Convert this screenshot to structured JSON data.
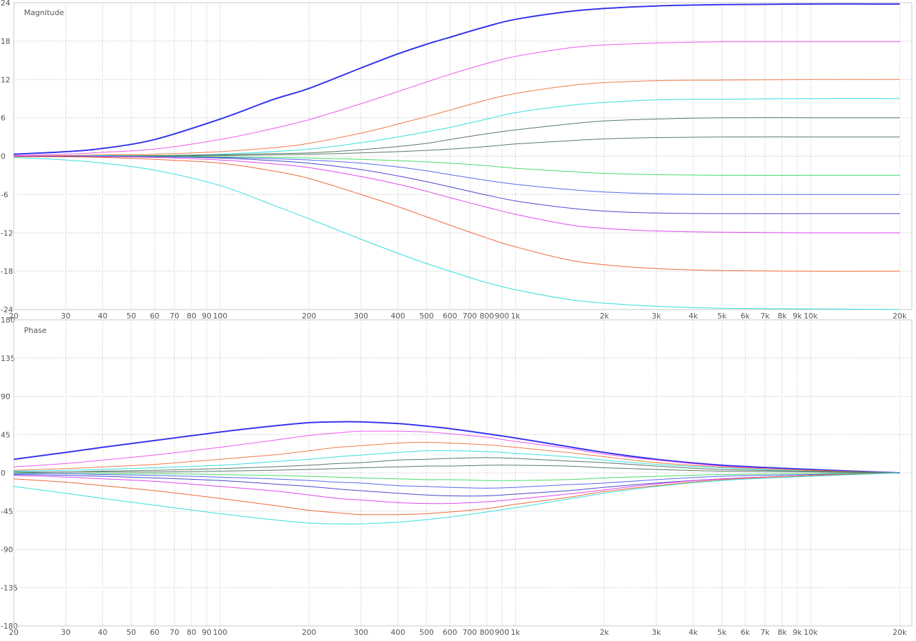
{
  "chart_data": [
    {
      "type": "line",
      "title": "Magnitude",
      "x_scale": "log",
      "xlim": [
        20,
        22000
      ],
      "ylim": [
        -24,
        24
      ],
      "grid": true,
      "x_ticks": [
        {
          "v": 20,
          "label": "20"
        },
        {
          "v": 30,
          "label": "30"
        },
        {
          "v": 40,
          "label": "40"
        },
        {
          "v": 50,
          "label": "50"
        },
        {
          "v": 60,
          "label": "60"
        },
        {
          "v": 70,
          "label": "70"
        },
        {
          "v": 80,
          "label": "80"
        },
        {
          "v": 90,
          "label": "90"
        },
        {
          "v": 100,
          "label": "100"
        },
        {
          "v": 200,
          "label": "200"
        },
        {
          "v": 300,
          "label": "300"
        },
        {
          "v": 400,
          "label": "400"
        },
        {
          "v": 500,
          "label": "500"
        },
        {
          "v": 600,
          "label": "600"
        },
        {
          "v": 700,
          "label": "700"
        },
        {
          "v": 800,
          "label": "800"
        },
        {
          "v": 900,
          "label": "900"
        },
        {
          "v": 1000,
          "label": "1k"
        },
        {
          "v": 2000,
          "label": "2k"
        },
        {
          "v": 3000,
          "label": "3k"
        },
        {
          "v": 4000,
          "label": "4k"
        },
        {
          "v": 5000,
          "label": "5k"
        },
        {
          "v": 6000,
          "label": "6k"
        },
        {
          "v": 7000,
          "label": "7k"
        },
        {
          "v": 8000,
          "label": "8k"
        },
        {
          "v": 9000,
          "label": "9k"
        },
        {
          "v": 10000,
          "label": "10k"
        },
        {
          "v": 20000,
          "label": "20k"
        }
      ],
      "y_ticks": [
        {
          "v": 24,
          "label": "24"
        },
        {
          "v": 18,
          "label": "18"
        },
        {
          "v": 12,
          "label": "12"
        },
        {
          "v": 6,
          "label": "6"
        },
        {
          "v": 0,
          "label": "0"
        },
        {
          "v": -6,
          "label": "-6"
        },
        {
          "v": -12,
          "label": "-12"
        },
        {
          "v": -18,
          "label": "-18"
        },
        {
          "v": -24,
          "label": "-24"
        }
      ],
      "x": [
        20,
        30,
        40,
        60,
        100,
        150,
        200,
        300,
        400,
        500,
        600,
        800,
        1000,
        1500,
        2000,
        3000,
        5000,
        10000,
        20000
      ],
      "series": [
        {
          "color": "#3333ee",
          "values": [
            0.3,
            0.7,
            1.2,
            2.6,
            5.8,
            8.8,
            10.6,
            13.8,
            16.0,
            17.5,
            18.6,
            20.3,
            21.4,
            22.6,
            23.1,
            23.5,
            23.7,
            23.8,
            23.8
          ]
        },
        {
          "color": "#ee55ee",
          "values": [
            0.1,
            0.3,
            0.6,
            1.1,
            2.6,
            4.3,
            5.7,
            8.2,
            10.1,
            11.6,
            12.8,
            14.5,
            15.6,
            16.9,
            17.4,
            17.7,
            17.9,
            17.9,
            17.9
          ]
        },
        {
          "color": "#ee7744",
          "values": [
            0.0,
            0.1,
            0.2,
            0.3,
            0.7,
            1.3,
            2.0,
            3.6,
            5.0,
            6.2,
            7.2,
            8.8,
            9.8,
            11.0,
            11.5,
            11.8,
            11.9,
            12.0,
            12.0
          ]
        },
        {
          "color": "#33dddd",
          "values": [
            0.0,
            0.0,
            0.1,
            0.1,
            0.3,
            0.7,
            1.1,
            2.1,
            3.0,
            3.8,
            4.5,
            5.8,
            6.8,
            7.9,
            8.4,
            8.8,
            8.9,
            9.0,
            9.0
          ]
        },
        {
          "color": "#557766",
          "values": [
            0.0,
            0.0,
            0.0,
            0.1,
            0.2,
            0.4,
            0.5,
            1.0,
            1.5,
            2.0,
            2.6,
            3.5,
            4.1,
            5.0,
            5.5,
            5.8,
            6.0,
            6.0,
            6.0
          ]
        },
        {
          "color": "#557766",
          "values": [
            0.0,
            0.0,
            0.0,
            0.0,
            0.1,
            0.2,
            0.3,
            0.5,
            0.7,
            0.9,
            1.1,
            1.5,
            1.9,
            2.4,
            2.7,
            2.9,
            3.0,
            3.0,
            3.0
          ]
        },
        {
          "color": "#44dd66",
          "values": [
            0.0,
            0.0,
            0.0,
            0.0,
            -0.1,
            -0.2,
            -0.3,
            -0.5,
            -0.7,
            -0.9,
            -1.1,
            -1.5,
            -1.9,
            -2.4,
            -2.7,
            -2.9,
            -3.0,
            -3.0,
            -3.0
          ]
        },
        {
          "color": "#5566ee",
          "values": [
            0.0,
            0.0,
            0.0,
            -0.1,
            -0.2,
            -0.4,
            -0.6,
            -1.1,
            -1.7,
            -2.3,
            -2.9,
            -3.8,
            -4.4,
            -5.2,
            -5.6,
            -5.9,
            -6.0,
            -6.0,
            -6.0
          ]
        },
        {
          "color": "#4444cc",
          "values": [
            0.0,
            0.0,
            -0.1,
            -0.1,
            -0.3,
            -0.7,
            -1.1,
            -2.1,
            -3.1,
            -4.0,
            -4.8,
            -6.1,
            -7.0,
            -8.1,
            -8.6,
            -8.9,
            -9.0,
            -9.0,
            -9.0
          ]
        },
        {
          "color": "#dd44ee",
          "values": [
            0.0,
            -0.1,
            -0.1,
            -0.2,
            -0.6,
            -1.2,
            -1.8,
            -3.2,
            -4.4,
            -5.5,
            -6.5,
            -8.0,
            -9.1,
            -10.7,
            -11.3,
            -11.7,
            -11.9,
            -12.0,
            -12.0
          ]
        },
        {
          "color": "#ee6633",
          "values": [
            -0.1,
            -0.1,
            -0.2,
            -0.5,
            -1.1,
            -2.3,
            -3.5,
            -6.0,
            -7.9,
            -9.5,
            -10.8,
            -12.8,
            -14.2,
            -16.2,
            -17.0,
            -17.6,
            -17.9,
            -18.0,
            -18.0
          ]
        },
        {
          "color": "#33dddd",
          "values": [
            -0.2,
            -0.6,
            -1.1,
            -2.2,
            -4.6,
            -7.6,
            -9.8,
            -13.0,
            -15.2,
            -16.8,
            -18.0,
            -19.8,
            -20.9,
            -22.4,
            -23.0,
            -23.5,
            -23.8,
            -23.9,
            -24.0
          ]
        }
      ]
    },
    {
      "type": "line",
      "title": "Phase",
      "x_scale": "log",
      "xlim": [
        20,
        22000
      ],
      "ylim": [
        -180,
        180
      ],
      "grid": true,
      "x_ticks": [
        {
          "v": 20,
          "label": "20"
        },
        {
          "v": 30,
          "label": "30"
        },
        {
          "v": 40,
          "label": "40"
        },
        {
          "v": 50,
          "label": "50"
        },
        {
          "v": 60,
          "label": "60"
        },
        {
          "v": 70,
          "label": "70"
        },
        {
          "v": 80,
          "label": "80"
        },
        {
          "v": 90,
          "label": "90"
        },
        {
          "v": 100,
          "label": "100"
        },
        {
          "v": 200,
          "label": "200"
        },
        {
          "v": 300,
          "label": "300"
        },
        {
          "v": 400,
          "label": "400"
        },
        {
          "v": 500,
          "label": "500"
        },
        {
          "v": 600,
          "label": "600"
        },
        {
          "v": 700,
          "label": "700"
        },
        {
          "v": 800,
          "label": "800"
        },
        {
          "v": 900,
          "label": "900"
        },
        {
          "v": 1000,
          "label": "1k"
        },
        {
          "v": 2000,
          "label": "2k"
        },
        {
          "v": 3000,
          "label": "3k"
        },
        {
          "v": 4000,
          "label": "4k"
        },
        {
          "v": 5000,
          "label": "5k"
        },
        {
          "v": 6000,
          "label": "6k"
        },
        {
          "v": 7000,
          "label": "7k"
        },
        {
          "v": 8000,
          "label": "8k"
        },
        {
          "v": 9000,
          "label": "9k"
        },
        {
          "v": 10000,
          "label": "10k"
        },
        {
          "v": 20000,
          "label": "20k"
        }
      ],
      "y_ticks": [
        {
          "v": 180,
          "label": "180"
        },
        {
          "v": 135,
          "label": "135"
        },
        {
          "v": 90,
          "label": "90"
        },
        {
          "v": 45,
          "label": "45"
        },
        {
          "v": 0,
          "label": "0"
        },
        {
          "v": -45,
          "label": "-45"
        },
        {
          "v": -90,
          "label": "-90"
        },
        {
          "v": -135,
          "label": "-135"
        },
        {
          "v": -180,
          "label": "-180"
        }
      ],
      "x": [
        20,
        30,
        40,
        60,
        100,
        150,
        200,
        250,
        300,
        400,
        500,
        600,
        800,
        1000,
        1500,
        2000,
        3000,
        5000,
        10000,
        20000
      ],
      "series": [
        {
          "color": "#3333ee",
          "values": [
            16,
            24,
            30,
            38,
            48,
            55,
            59,
            60,
            60,
            58,
            55,
            52,
            46,
            41,
            31,
            24,
            16,
            9,
            4,
            0
          ]
        },
        {
          "color": "#ee55ee",
          "values": [
            7,
            11,
            15,
            21,
            30,
            38,
            44,
            47,
            49,
            49,
            48,
            46,
            42,
            37,
            29,
            22,
            15,
            8,
            3,
            0
          ]
        },
        {
          "color": "#ee7744",
          "values": [
            3,
            5,
            7,
            10,
            16,
            21,
            26,
            30,
            32,
            35,
            36,
            35,
            33,
            30,
            24,
            19,
            12,
            7,
            3,
            0
          ]
        },
        {
          "color": "#33dddd",
          "values": [
            2,
            3,
            4,
            6,
            9,
            13,
            16,
            19,
            21,
            24,
            26,
            26,
            25,
            23,
            19,
            15,
            10,
            6,
            2,
            0
          ]
        },
        {
          "color": "#557766",
          "values": [
            1,
            1,
            2,
            3,
            5,
            7,
            9,
            11,
            12,
            15,
            16,
            17,
            18,
            17,
            14,
            12,
            8,
            4,
            2,
            0
          ]
        },
        {
          "color": "#557766",
          "values": [
            0,
            1,
            1,
            1,
            2,
            3,
            4,
            5,
            6,
            7,
            8,
            8,
            9,
            9,
            8,
            6,
            4,
            2,
            1,
            0
          ]
        },
        {
          "color": "#44dd66",
          "values": [
            0,
            -1,
            -1,
            -1,
            -2,
            -3,
            -4,
            -5,
            -6,
            -7,
            -8,
            -8,
            -9,
            -9,
            -8,
            -6,
            -4,
            -2,
            -1,
            0
          ]
        },
        {
          "color": "#5566ee",
          "values": [
            -1,
            -1,
            -2,
            -3,
            -5,
            -7,
            -9,
            -11,
            -12,
            -15,
            -16,
            -17,
            -18,
            -17,
            -14,
            -12,
            -8,
            -4,
            -2,
            0
          ]
        },
        {
          "color": "#4444cc",
          "values": [
            -2,
            -3,
            -4,
            -6,
            -9,
            -13,
            -16,
            -19,
            -21,
            -24,
            -26,
            -27,
            -27,
            -25,
            -21,
            -17,
            -12,
            -7,
            -3,
            0
          ]
        },
        {
          "color": "#dd44ee",
          "values": [
            -3,
            -5,
            -7,
            -10,
            -16,
            -21,
            -26,
            -30,
            -32,
            -35,
            -36,
            -36,
            -34,
            -31,
            -25,
            -20,
            -13,
            -7,
            -3,
            0
          ]
        },
        {
          "color": "#ee6633",
          "values": [
            -7,
            -11,
            -15,
            -21,
            -30,
            -38,
            -44,
            -47,
            -49,
            -49,
            -48,
            -46,
            -42,
            -37,
            -29,
            -22,
            -15,
            -8,
            -3,
            0
          ]
        },
        {
          "color": "#33dddd",
          "values": [
            -16,
            -24,
            -30,
            -38,
            -48,
            -55,
            -59,
            -60,
            -60,
            -58,
            -55,
            -52,
            -46,
            -41,
            -31,
            -24,
            -16,
            -9,
            -4,
            0
          ]
        }
      ]
    }
  ]
}
